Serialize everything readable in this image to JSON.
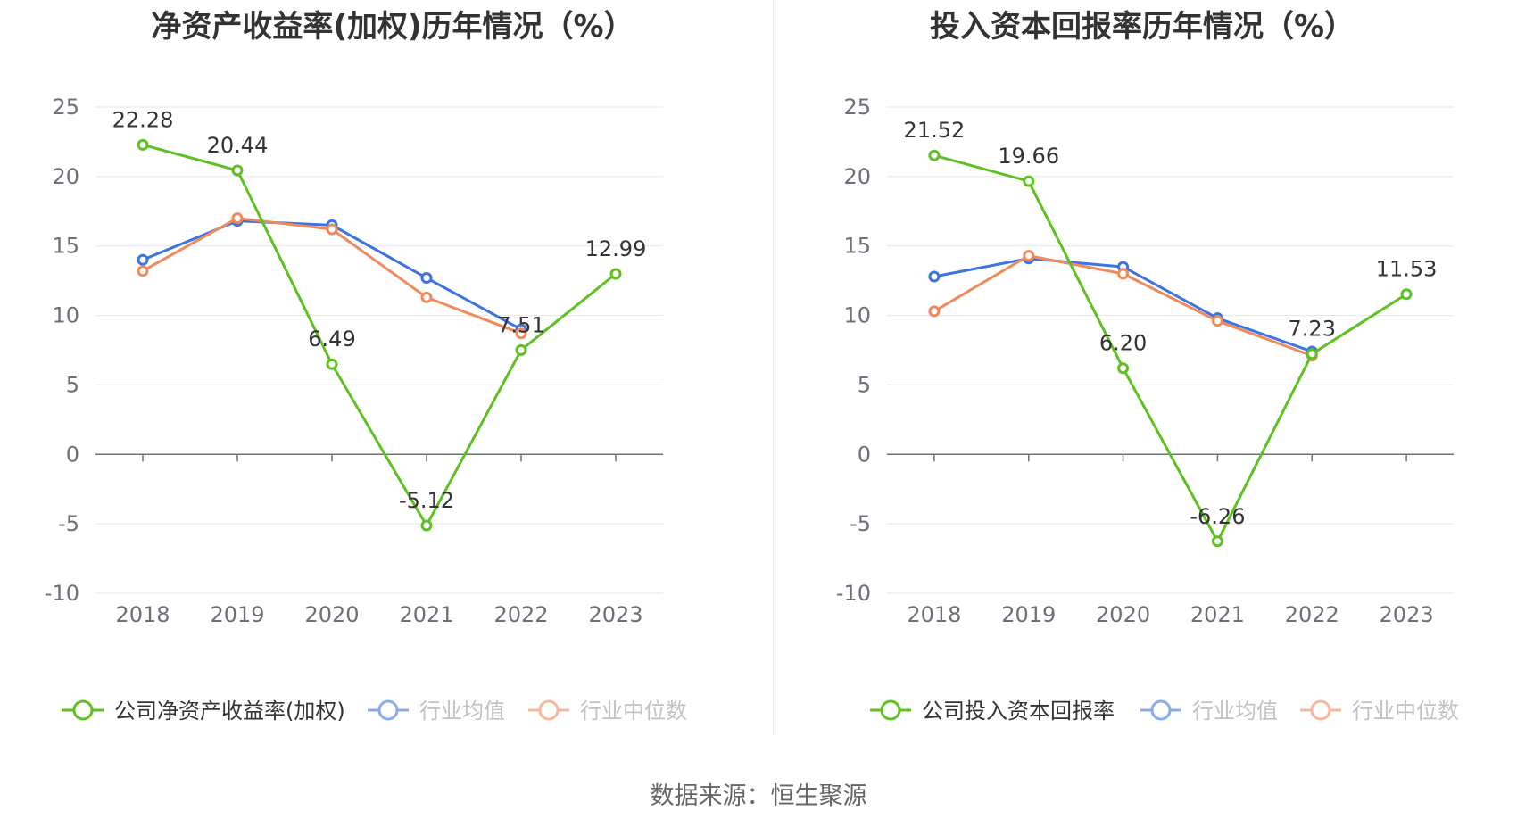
{
  "footer": {
    "source": "数据来源：恒生聚源"
  },
  "colors": {
    "company": "#5ec022",
    "mean": "#3c74e0",
    "median": "#f08a5d",
    "grid": "#e0e6f1",
    "axis": "#6e7079"
  },
  "chart_data": [
    {
      "type": "line",
      "title": "净资产收益率(加权)历年情况（%）",
      "categories": [
        "2018",
        "2019",
        "2020",
        "2021",
        "2022",
        "2023"
      ],
      "ylim": [
        -10,
        25
      ],
      "yticks": [
        25,
        20,
        15,
        10,
        5,
        0,
        -5,
        -10
      ],
      "series": [
        {
          "name": "公司净资产收益率(加权)",
          "values": [
            22.28,
            20.44,
            6.49,
            -5.12,
            7.51,
            12.99
          ],
          "labels": [
            "22.28",
            "20.44",
            "6.49",
            "-5.12",
            "7.51",
            "12.99"
          ]
        },
        {
          "name": "行业均值",
          "values": [
            14.0,
            16.8,
            16.5,
            12.7,
            9.0,
            null
          ]
        },
        {
          "name": "行业中位数",
          "values": [
            13.2,
            17.0,
            16.2,
            11.3,
            8.7,
            null
          ]
        }
      ]
    },
    {
      "type": "line",
      "title": "投入资本回报率历年情况（%）",
      "categories": [
        "2018",
        "2019",
        "2020",
        "2021",
        "2022",
        "2023"
      ],
      "ylim": [
        -10,
        25
      ],
      "yticks": [
        25,
        20,
        15,
        10,
        5,
        0,
        -5,
        -10
      ],
      "series": [
        {
          "name": "公司投入资本回报率",
          "values": [
            21.52,
            19.66,
            6.2,
            -6.26,
            7.23,
            11.53
          ],
          "labels": [
            "21.52",
            "19.66",
            "6.20",
            "-6.26",
            "7.23",
            "11.53"
          ]
        },
        {
          "name": "行业均值",
          "values": [
            12.8,
            14.1,
            13.5,
            9.8,
            7.4,
            null
          ]
        },
        {
          "name": "行业中位数",
          "values": [
            10.3,
            14.3,
            13.0,
            9.6,
            7.1,
            null
          ]
        }
      ]
    }
  ]
}
